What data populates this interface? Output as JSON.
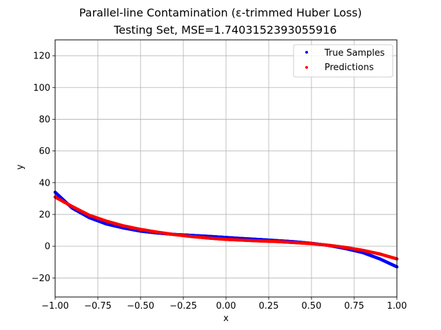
{
  "chart_data": {
    "type": "scatter",
    "title": "Parallel-line Contamination (ε-trimmed Huber Loss)",
    "subtitle": "Testing Set, MSE=1.7403152393055916",
    "xlabel": "x",
    "ylabel": "y",
    "xlim": [
      -1.0,
      1.0
    ],
    "ylim": [
      -32,
      130
    ],
    "xticks": [
      -1.0,
      -0.75,
      -0.5,
      -0.25,
      0.0,
      0.25,
      0.5,
      0.75,
      1.0
    ],
    "xtick_labels": [
      "−1.00",
      "−0.75",
      "−0.50",
      "−0.25",
      "0.00",
      "0.25",
      "0.50",
      "0.75",
      "1.00"
    ],
    "yticks": [
      -20,
      0,
      20,
      40,
      60,
      80,
      100,
      120
    ],
    "ytick_labels": [
      "−20",
      "0",
      "20",
      "40",
      "60",
      "80",
      "100",
      "120"
    ],
    "grid": true,
    "legend_position": "top-right",
    "series": [
      {
        "name": "True Samples",
        "color": "#0000ff",
        "x": [
          -1.0,
          -0.9,
          -0.8,
          -0.7,
          -0.6,
          -0.5,
          -0.4,
          -0.3,
          -0.2,
          -0.1,
          0.0,
          0.1,
          0.2,
          0.3,
          0.4,
          0.5,
          0.6,
          0.7,
          0.8,
          0.9,
          1.0
        ],
        "y": [
          34,
          24,
          18,
          14,
          11.5,
          9.5,
          8.3,
          7.4,
          6.8,
          6.2,
          5.5,
          4.8,
          4.2,
          3.5,
          2.8,
          1.8,
          0.5,
          -1.5,
          -4,
          -8,
          -13
        ]
      },
      {
        "name": "Predictions",
        "color": "#ff0000",
        "x": [
          -1.0,
          -0.9,
          -0.8,
          -0.7,
          -0.6,
          -0.5,
          -0.4,
          -0.3,
          -0.2,
          -0.1,
          0.0,
          0.1,
          0.2,
          0.3,
          0.4,
          0.5,
          0.6,
          0.7,
          0.8,
          0.9,
          1.0
        ],
        "y": [
          31,
          25,
          19.5,
          15.8,
          12.8,
          10.6,
          8.8,
          7.3,
          6.1,
          5.1,
          4.3,
          3.8,
          3.3,
          2.9,
          2.3,
          1.6,
          0.6,
          -0.8,
          -2.6,
          -4.9,
          -8
        ]
      }
    ]
  }
}
